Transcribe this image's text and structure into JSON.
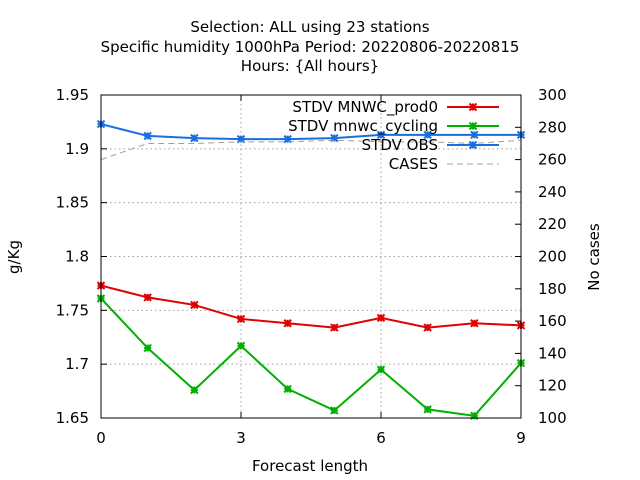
{
  "chart_data": {
    "type": "line",
    "title_lines": [
      "Selection: ALL using    23 stations",
      "Specific humidity 1000hPa   Period: 20220806-20220815",
      "Hours: {All hours}"
    ],
    "xlabel": "Forecast length",
    "ylabel": "g/Kg",
    "y2label": "No cases",
    "xlim": [
      0,
      9
    ],
    "ylim": [
      1.65,
      1.95
    ],
    "y2lim": [
      100,
      300
    ],
    "x_ticks": [
      "0",
      "3",
      "6",
      "9"
    ],
    "y_ticks": [
      "1.65",
      "1.7",
      "1.75",
      "1.8",
      "1.85",
      "1.9",
      "1.95"
    ],
    "y2_ticks": [
      "100",
      "120",
      "140",
      "160",
      "180",
      "200",
      "220",
      "240",
      "260",
      "280",
      "300"
    ],
    "grid": true,
    "legend_position": "top-right",
    "x": [
      0,
      1,
      2,
      3,
      4,
      5,
      6,
      7,
      8,
      9
    ],
    "series": [
      {
        "name": "STDV MNWC_prod0",
        "axis": "left",
        "color": "#e00000",
        "marker": "x",
        "values": [
          1.773,
          1.762,
          1.755,
          1.742,
          1.738,
          1.734,
          1.743,
          1.734,
          1.738,
          1.736
        ]
      },
      {
        "name": "STDV mnwc_cycling",
        "axis": "left",
        "color": "#00b000",
        "marker": "x",
        "values": [
          1.761,
          1.715,
          1.676,
          1.717,
          1.677,
          1.657,
          1.695,
          1.658,
          1.652,
          1.701
        ]
      },
      {
        "name": "STDV OBS",
        "axis": "left",
        "color": "#1a6fe0",
        "marker": "x",
        "values": [
          1.923,
          1.912,
          1.91,
          1.909,
          1.909,
          1.91,
          1.913,
          1.913,
          1.913,
          1.913
        ]
      },
      {
        "name": "CASES",
        "axis": "right",
        "color": "#a0a0a0",
        "dashed": true,
        "values": [
          260,
          270,
          270,
          271,
          271,
          272,
          271,
          271,
          270,
          272
        ]
      }
    ]
  }
}
